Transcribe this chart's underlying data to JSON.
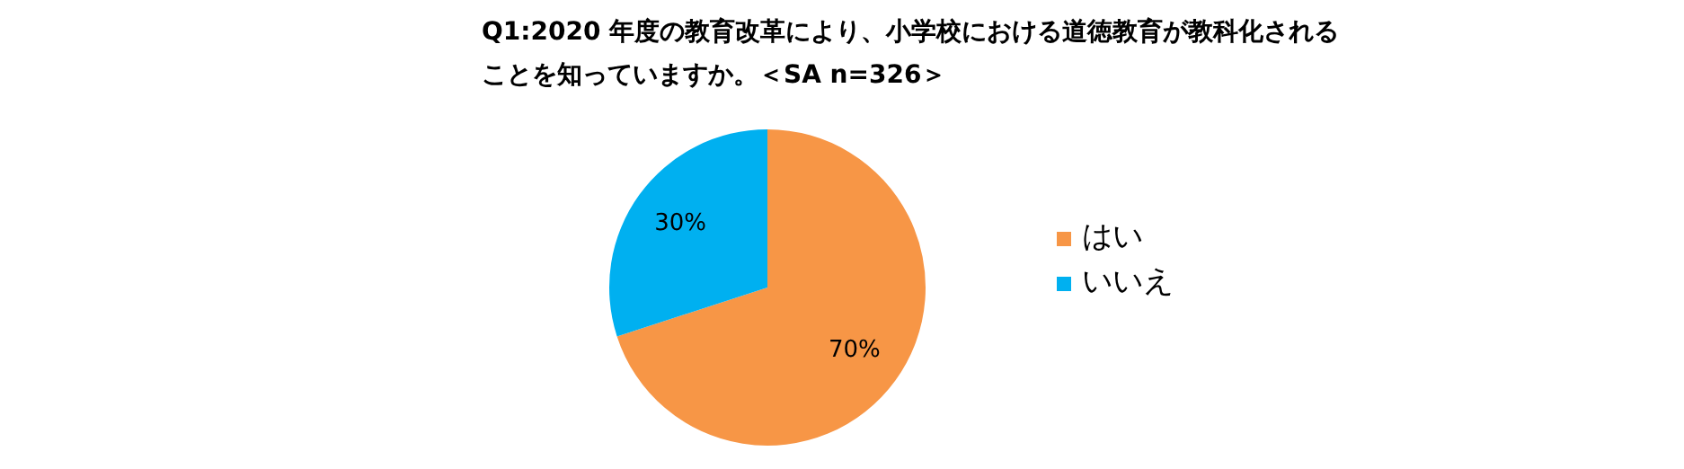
{
  "chart_data": {
    "type": "pie",
    "title": "Q1:2020 年度の教育改革により、小学校における道徳教育が教科化されることを知っていますか。＜SA n=326＞",
    "categories": [
      "はい",
      "いいえ"
    ],
    "values": [
      70,
      30
    ],
    "colors": [
      "#f79646",
      "#00b0f0"
    ],
    "value_labels": [
      "70%",
      "30%"
    ],
    "legend": "right"
  }
}
